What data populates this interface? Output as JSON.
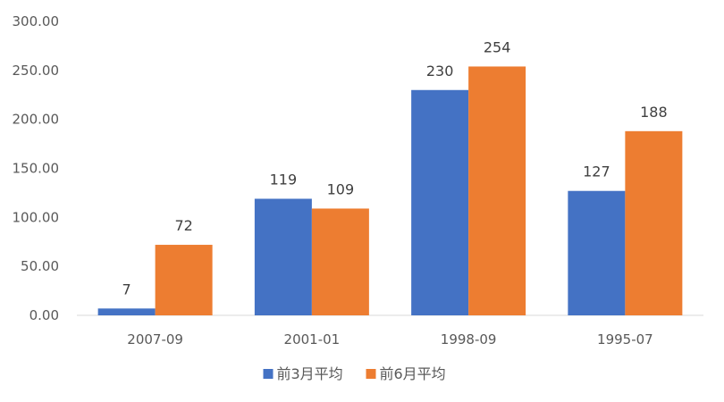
{
  "chart_data": {
    "type": "bar",
    "title": "",
    "xlabel": "",
    "ylabel": "",
    "categories": [
      "2007-09",
      "2001-01",
      "1998-09",
      "1995-07"
    ],
    "series": [
      {
        "name": "前3月平均",
        "color": "#4472C4",
        "values": [
          7,
          119,
          230,
          127
        ]
      },
      {
        "name": "前6月平均",
        "color": "#ED7D31",
        "values": [
          72,
          109,
          254,
          188
        ]
      }
    ],
    "ylim": [
      0,
      300
    ],
    "yticks": [
      "0.00",
      "50.00",
      "100.00",
      "150.00",
      "200.00",
      "250.00",
      "300.00"
    ],
    "grid": false,
    "legend": "bottom"
  }
}
